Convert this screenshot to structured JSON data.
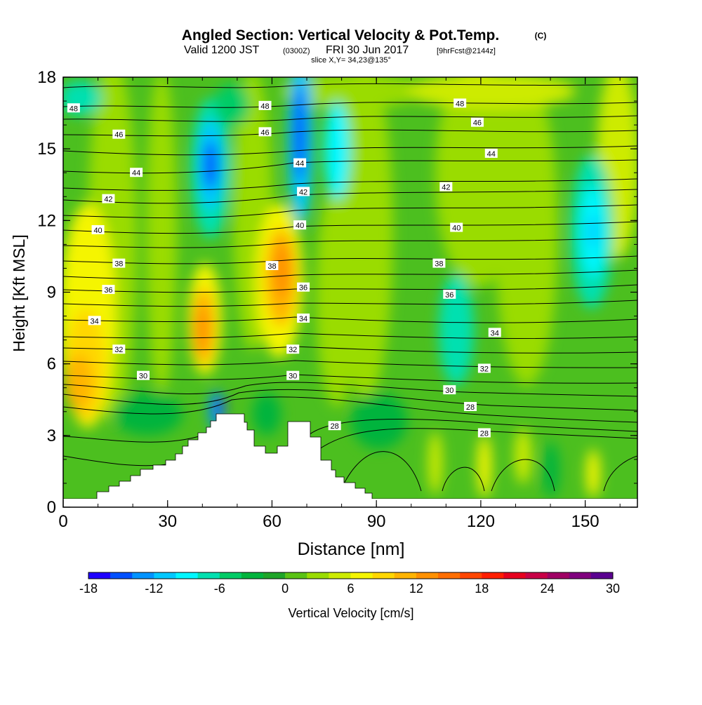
{
  "chart_data": {
    "type": "heatmap",
    "title_main": "Angled Section: Vertical Velocity & Pot.Temp.",
    "title_unit": "(C)",
    "subtitle_pre": "Valid 1200 JST",
    "subtitle_utc": "(0300Z)",
    "subtitle_date": "FRI 30 Jun 2017",
    "subtitle_fcst": "[9hrFcst@2144z]",
    "slice_label": "slice X,Y= 34,23@135°",
    "xlabel": "Distance [nm]",
    "ylabel": "Height [Kft MSL]",
    "xlim": [
      0,
      165
    ],
    "ylim": [
      0,
      18
    ],
    "x_ticks": [
      "0",
      "30",
      "60",
      "90",
      "120",
      "150"
    ],
    "y_ticks": [
      "0",
      "3",
      "6",
      "9",
      "12",
      "15",
      "18"
    ],
    "colorbar_label": "Vertical Velocity [cm/s]",
    "colorbar_ticks": [
      "-18",
      "-12",
      "-6",
      "0",
      "6",
      "12",
      "18",
      "24",
      "30"
    ],
    "colorbar_range": [
      -18,
      30
    ],
    "colorbar_colors": [
      "#1f00ff",
      "#0050ff",
      "#0093ff",
      "#00c8ff",
      "#00f7ff",
      "#00e0b0",
      "#00cc66",
      "#00b43c",
      "#1ea528",
      "#5ac314",
      "#9adc00",
      "#cdeb00",
      "#f5f500",
      "#ffd700",
      "#ffb400",
      "#ff9100",
      "#ff6e00",
      "#ff4600",
      "#ff1e00",
      "#e6001e",
      "#c80046",
      "#a00064",
      "#80007e",
      "#5a0090"
    ],
    "theta_contour_labels": [
      {
        "value": "48",
        "x": 3,
        "y": 16.7
      },
      {
        "value": "48",
        "x": 58,
        "y": 16.8
      },
      {
        "value": "48",
        "x": 114,
        "y": 16.9
      },
      {
        "value": "46",
        "x": 16,
        "y": 15.6
      },
      {
        "value": "46",
        "x": 58,
        "y": 15.7
      },
      {
        "value": "46",
        "x": 119,
        "y": 16.1
      },
      {
        "value": "44",
        "x": 21,
        "y": 14.0
      },
      {
        "value": "44",
        "x": 68,
        "y": 14.4
      },
      {
        "value": "44",
        "x": 123,
        "y": 14.8
      },
      {
        "value": "42",
        "x": 13,
        "y": 12.9
      },
      {
        "value": "42",
        "x": 69,
        "y": 13.2
      },
      {
        "value": "42",
        "x": 110,
        "y": 13.4
      },
      {
        "value": "40",
        "x": 10,
        "y": 11.6
      },
      {
        "value": "40",
        "x": 68,
        "y": 11.8
      },
      {
        "value": "40",
        "x": 113,
        "y": 11.7
      },
      {
        "value": "38",
        "x": 16,
        "y": 10.2
      },
      {
        "value": "38",
        "x": 60,
        "y": 10.1
      },
      {
        "value": "38",
        "x": 108,
        "y": 10.2
      },
      {
        "value": "36",
        "x": 13,
        "y": 9.1
      },
      {
        "value": "36",
        "x": 69,
        "y": 9.2
      },
      {
        "value": "36",
        "x": 111,
        "y": 8.9
      },
      {
        "value": "34",
        "x": 9,
        "y": 7.8
      },
      {
        "value": "34",
        "x": 69,
        "y": 7.9
      },
      {
        "value": "34",
        "x": 124,
        "y": 7.3
      },
      {
        "value": "32",
        "x": 16,
        "y": 6.6
      },
      {
        "value": "32",
        "x": 66,
        "y": 6.6
      },
      {
        "value": "32",
        "x": 121,
        "y": 5.8
      },
      {
        "value": "30",
        "x": 23,
        "y": 5.5
      },
      {
        "value": "30",
        "x": 66,
        "y": 5.5
      },
      {
        "value": "30",
        "x": 111,
        "y": 4.9
      },
      {
        "value": "28",
        "x": 78,
        "y": 3.4
      },
      {
        "value": "28",
        "x": 117,
        "y": 4.2
      },
      {
        "value": "28",
        "x": 121,
        "y": 3.1
      }
    ]
  }
}
